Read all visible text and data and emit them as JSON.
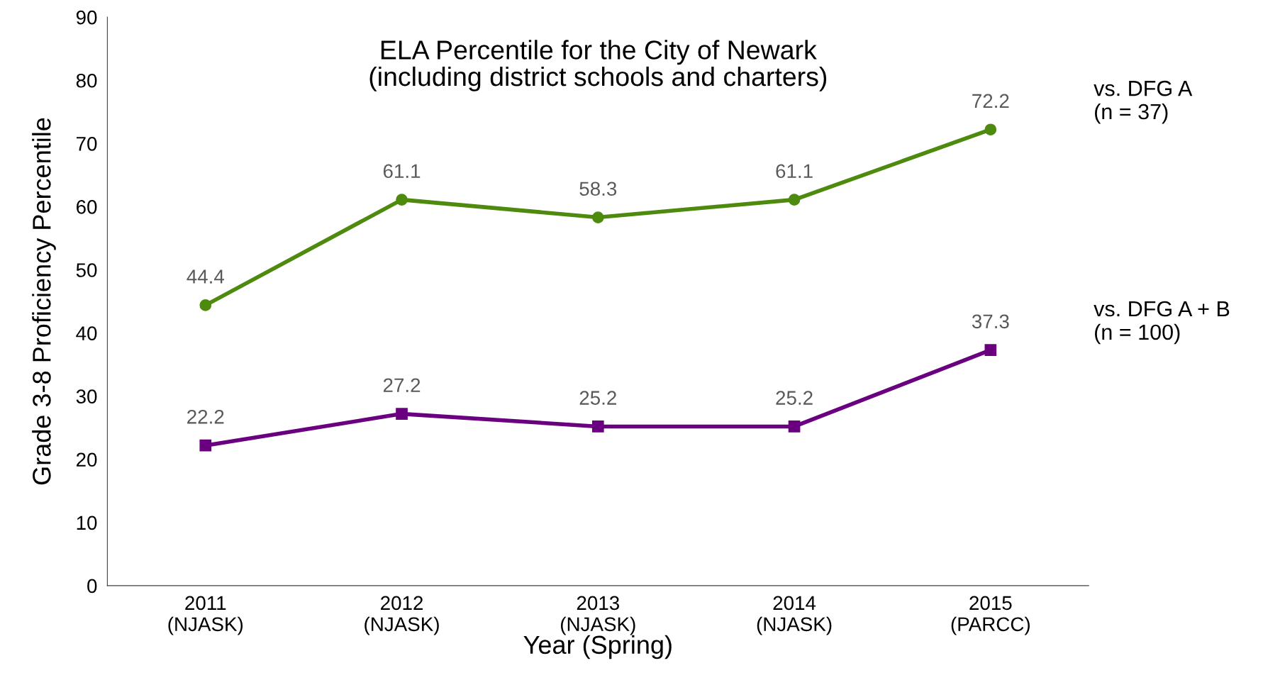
{
  "chart_data": {
    "type": "line",
    "title": "ELA Percentile for the City of Newark\n(including district schools and charters)",
    "xlabel": "Year (Spring)",
    "ylabel": "Grade 3-8 Proficiency Percentile",
    "categories": [
      "2011\n(NJASK)",
      "2012\n(NJASK)",
      "2013\n(NJASK)",
      "2014\n(NJASK)",
      "2015\n(PARCC)"
    ],
    "series": [
      {
        "name": "vs. DFG A\n(n = 37)",
        "color": "#4e8a0e",
        "marker": "circle",
        "values": [
          44.4,
          61.1,
          58.3,
          61.1,
          72.2
        ]
      },
      {
        "name": "vs. DFG A + B\n(n = 100)",
        "color": "#6a0080",
        "marker": "square",
        "values": [
          22.2,
          27.2,
          25.2,
          25.2,
          37.3
        ]
      }
    ],
    "ylim": [
      0,
      90
    ],
    "yticks": [
      0,
      10,
      20,
      30,
      40,
      50,
      60,
      70,
      80,
      90
    ],
    "grid": false,
    "legend": false,
    "data_labels": true,
    "line_style": "solid"
  }
}
